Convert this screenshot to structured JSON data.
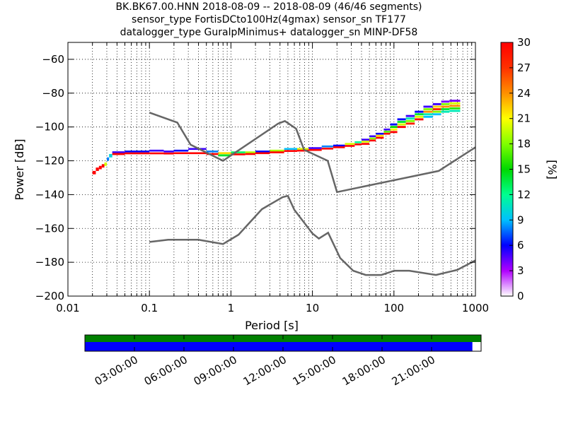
{
  "title_lines": [
    "BK.BK67.00.HNN   2018-08-09 -- 2018-08-09  (46/46 segments)",
    "sensor_type FortisDCto100Hz(4gmax) sensor_sn TF177",
    "datalogger_type GuralpMinimus+ datalogger_sn MINP-DF58"
  ],
  "chart_data": [
    {
      "type": "heatmap",
      "title": "",
      "xlabel": "Period [s]",
      "ylabel": "Power [dB]",
      "xscale": "log",
      "xlim": [
        0.01,
        1000
      ],
      "ylim": [
        -200,
        -50
      ],
      "x_ticks": [
        0.01,
        0.1,
        1,
        10,
        100,
        1000
      ],
      "x_tick_labels": [
        "0.01",
        "0.1",
        "1",
        "10",
        "100",
        "1000"
      ],
      "y_ticks": [
        -200,
        -180,
        -160,
        -140,
        -120,
        -100,
        -80,
        -60
      ],
      "y_tick_labels": [
        "−200",
        "−180",
        "−160",
        "−140",
        "−120",
        "−100",
        "−80",
        "−60"
      ],
      "grid": "dotted",
      "colorbar": {
        "label": "[%]",
        "min": 0,
        "max": 30,
        "ticks": [
          0,
          3,
          6,
          9,
          12,
          15,
          18,
          21,
          24,
          27,
          30
        ],
        "tick_labels": [
          "0",
          "3",
          "6",
          "9",
          "12",
          "15",
          "18",
          "21",
          "24",
          "27",
          "30"
        ],
        "colormap": "pqlx"
      },
      "noise_models": [
        {
          "points": [
            [
              0.1,
              -91.5
            ],
            [
              0.22,
              -97.4
            ],
            [
              0.32,
              -110.5
            ],
            [
              0.8,
              -120
            ],
            [
              3.8,
              -98
            ],
            [
              4.6,
              -96.5
            ],
            [
              6.3,
              -101
            ],
            [
              7.9,
              -113.5
            ],
            [
              15.4,
              -120
            ],
            [
              20,
              -138.5
            ],
            [
              354,
              -126
            ],
            [
              1000,
              -112
            ]
          ]
        },
        {
          "points": [
            [
              0.1,
              -168
            ],
            [
              0.17,
              -166.7
            ],
            [
              0.4,
              -166.7
            ],
            [
              0.8,
              -169.2
            ],
            [
              1.24,
              -163.7
            ],
            [
              2.4,
              -148.6
            ],
            [
              4.3,
              -141.5
            ],
            [
              5,
              -140.7
            ],
            [
              6,
              -149
            ],
            [
              10,
              -163
            ],
            [
              12,
              -166
            ],
            [
              15.6,
              -162.5
            ],
            [
              21.9,
              -177.5
            ],
            [
              31.6,
              -185
            ],
            [
              45,
              -187.5
            ],
            [
              70,
              -187.5
            ],
            [
              101,
              -185
            ],
            [
              154,
              -185
            ],
            [
              328,
              -187.5
            ],
            [
              600,
              -184.5
            ],
            [
              1000,
              -178.9
            ]
          ]
        }
      ],
      "psd_bands": [
        {
          "period": 0.02,
          "centers": [
            -127
          ],
          "width": 2,
          "pct": [
            30
          ]
        },
        {
          "period": 0.022,
          "centers": [
            -125
          ],
          "width": 2,
          "pct": [
            30
          ]
        },
        {
          "period": 0.024,
          "centers": [
            -124
          ],
          "width": 2,
          "pct": [
            30
          ]
        },
        {
          "period": 0.026,
          "centers": [
            -123
          ],
          "width": 2,
          "pct": [
            30
          ]
        },
        {
          "period": 0.028,
          "centers": [
            -122
          ],
          "width": 2,
          "pct": [
            20
          ]
        },
        {
          "period": 0.03,
          "centers": [
            -119
          ],
          "width": 2,
          "pct": [
            8
          ]
        },
        {
          "period": 0.032,
          "centers": [
            -117
          ],
          "width": 2,
          "pct": [
            10
          ]
        },
        {
          "period": 0.035,
          "centers": [
            -115,
            -116
          ],
          "width": 1.2,
          "pct": [
            5,
            30
          ]
        },
        {
          "period": 0.05,
          "centers": [
            -114.5,
            -115.6
          ],
          "width": 1.1,
          "pct": [
            6,
            30
          ]
        },
        {
          "period": 0.1,
          "centers": [
            -114,
            -115.6
          ],
          "width": 1.1,
          "pct": [
            5,
            30
          ]
        },
        {
          "period": 0.15,
          "centers": [
            -114.5,
            -115.7
          ],
          "width": 1.1,
          "pct": [
            5,
            30
          ]
        },
        {
          "period": 0.2,
          "centers": [
            -114,
            -115.5
          ],
          "width": 1.1,
          "pct": [
            6,
            30
          ]
        },
        {
          "period": 0.3,
          "centers": [
            -113,
            -115.5
          ],
          "width": 1.1,
          "pct": [
            5,
            30
          ]
        },
        {
          "period": 0.5,
          "centers": [
            -114.5,
            -116
          ],
          "width": 1.1,
          "pct": [
            8,
            30
          ]
        },
        {
          "period": 0.7,
          "centers": [
            -115.5,
            -116.8
          ],
          "width": 1.2,
          "pct": [
            22,
            14
          ]
        },
        {
          "period": 1,
          "centers": [
            -115,
            -116.2
          ],
          "width": 1.1,
          "pct": [
            13,
            30
          ]
        },
        {
          "period": 1.5,
          "centers": [
            -115,
            -116
          ],
          "width": 1.1,
          "pct": [
            19,
            30
          ]
        },
        {
          "period": 2,
          "centers": [
            -114.5,
            -115.5
          ],
          "width": 1.1,
          "pct": [
            6,
            30
          ]
        },
        {
          "period": 3,
          "centers": [
            -114,
            -115
          ],
          "width": 1.1,
          "pct": [
            19,
            30
          ]
        },
        {
          "period": 4.5,
          "centers": [
            -113,
            -114.2
          ],
          "width": 1.1,
          "pct": [
            9,
            30
          ]
        },
        {
          "period": 6.5,
          "centers": [
            -113,
            -114
          ],
          "width": 1.1,
          "pct": [
            20,
            30
          ]
        },
        {
          "period": 9,
          "centers": [
            -112.5,
            -113.6
          ],
          "width": 1.1,
          "pct": [
            5,
            30
          ]
        },
        {
          "period": 13,
          "centers": [
            -111.5,
            -112.8
          ],
          "width": 1.1,
          "pct": [
            8,
            30
          ]
        },
        {
          "period": 18,
          "centers": [
            -111,
            -112
          ],
          "width": 1.1,
          "pct": [
            6,
            30
          ]
        },
        {
          "period": 25,
          "centers": [
            -110,
            -111.2
          ],
          "width": 1.1,
          "pct": [
            20,
            30
          ]
        },
        {
          "period": 33,
          "centers": [
            -109,
            -110.3
          ],
          "width": 1.1,
          "pct": [
            12,
            30
          ]
        },
        {
          "period": 40,
          "centers": [
            -107.5,
            -108.7,
            -110
          ],
          "width": 1.1,
          "pct": [
            5,
            20,
            30
          ]
        },
        {
          "period": 50,
          "centers": [
            -105.5,
            -106.8,
            -108
          ],
          "width": 1.1,
          "pct": [
            5,
            18,
            30
          ]
        },
        {
          "period": 60,
          "centers": [
            -104,
            -105.2,
            -106.4
          ],
          "width": 1.1,
          "pct": [
            6,
            22,
            30
          ]
        },
        {
          "period": 75,
          "centers": [
            -101.5,
            -102.8,
            -104
          ],
          "width": 1.1,
          "pct": [
            5,
            17,
            30
          ]
        },
        {
          "period": 90,
          "centers": [
            -98.5,
            -100,
            -101.5,
            -103
          ],
          "width": 1.2,
          "pct": [
            6,
            15,
            21,
            30
          ]
        },
        {
          "period": 110,
          "centers": [
            -95.5,
            -97,
            -98.5,
            -100
          ],
          "width": 1.2,
          "pct": [
            6,
            14,
            20,
            30
          ]
        },
        {
          "period": 140,
          "centers": [
            -93.5,
            -95,
            -96.5,
            -98
          ],
          "width": 1.2,
          "pct": [
            5,
            11,
            18,
            28
          ]
        },
        {
          "period": 180,
          "centers": [
            -91,
            -92.5,
            -94,
            -95.5
          ],
          "width": 1.2,
          "pct": [
            6,
            14,
            20,
            30
          ]
        },
        {
          "period": 230,
          "centers": [
            -88,
            -89.5,
            -91,
            -92.5,
            -94
          ],
          "width": 1.2,
          "pct": [
            5,
            18,
            24,
            11,
            9
          ]
        },
        {
          "period": 300,
          "centers": [
            -86.5,
            -88,
            -89.5,
            -91,
            -92.5
          ],
          "width": 1.2,
          "pct": [
            5,
            22,
            28,
            18,
            9
          ]
        },
        {
          "period": 380,
          "centers": [
            -85,
            -86.5,
            -88,
            -89.5,
            -91
          ],
          "width": 1.2,
          "pct": [
            4,
            18,
            24,
            14,
            11
          ]
        },
        {
          "period": 480,
          "centers": [
            -84.5,
            -86,
            -87.5,
            -89,
            -90.5
          ],
          "width": 1.2,
          "pct": [
            4,
            20,
            24,
            16,
            11
          ]
        }
      ]
    },
    {
      "type": "timeline",
      "xlabel": "",
      "tick_labels": [
        "03:00:00",
        "06:00:00",
        "09:00:00",
        "12:00:00",
        "15:00:00",
        "18:00:00",
        "21:00:00"
      ],
      "hours": [
        3,
        6,
        9,
        12,
        15,
        18,
        21
      ],
      "range_hours": [
        0,
        24
      ],
      "top_bar_end_fraction": 1.0,
      "bottom_bar_end_fraction": 0.978,
      "top_bar_color": "#008000",
      "bottom_bar_color": "#0000ff"
    }
  ]
}
